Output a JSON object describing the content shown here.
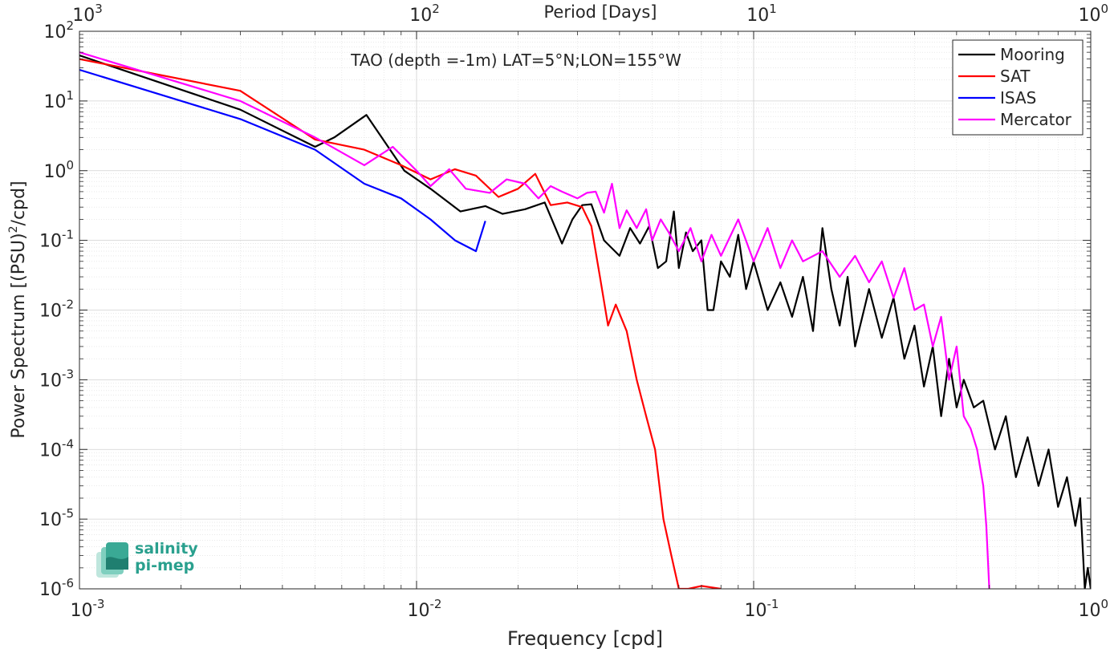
{
  "chart_data": {
    "type": "line",
    "title": "TAO (depth =-1m) LAT=5°N;LON=155°W",
    "xlabel": "Frequency [cpd]",
    "ylabel_main": "Power Spectrum [(PSU)",
    "ylabel_sup": "2",
    "ylabel_tail": "/cpd]",
    "top_xlabel": "Period [Days]",
    "xscale": "log",
    "yscale": "log",
    "xlim": [
      0.001,
      1
    ],
    "ylim": [
      1e-06,
      100
    ],
    "grid": true,
    "legend_position": "top-right",
    "x_ticks": [
      {
        "value": 0.001,
        "base": "10",
        "exp": "-3"
      },
      {
        "value": 0.01,
        "base": "10",
        "exp": "-2"
      },
      {
        "value": 0.1,
        "base": "10",
        "exp": "-1"
      },
      {
        "value": 1,
        "base": "10",
        "exp": "0"
      }
    ],
    "y_ticks": [
      {
        "value": 1e-06,
        "base": "10",
        "exp": "-6"
      },
      {
        "value": 1e-05,
        "base": "10",
        "exp": "-5"
      },
      {
        "value": 0.0001,
        "base": "10",
        "exp": "-4"
      },
      {
        "value": 0.001,
        "base": "10",
        "exp": "-3"
      },
      {
        "value": 0.01,
        "base": "10",
        "exp": "-2"
      },
      {
        "value": 0.1,
        "base": "10",
        "exp": "-1"
      },
      {
        "value": 1,
        "base": "10",
        "exp": "0"
      },
      {
        "value": 10,
        "base": "10",
        "exp": "1"
      },
      {
        "value": 100,
        "base": "10",
        "exp": "2"
      }
    ],
    "top_ticks": [
      {
        "value": 0.001,
        "base": "10",
        "exp": "3"
      },
      {
        "value": 0.01,
        "base": "10",
        "exp": "2"
      },
      {
        "value": 0.1,
        "base": "10",
        "exp": "1"
      },
      {
        "value": 1,
        "base": "10",
        "exp": "0"
      }
    ],
    "series": [
      {
        "name": "Mooring",
        "color": "#000000",
        "points": [
          [
            0.001,
            45
          ],
          [
            0.003,
            7.5
          ],
          [
            0.005,
            2.2
          ],
          [
            0.0057,
            3
          ],
          [
            0.0071,
            6.3
          ],
          [
            0.0092,
            1
          ],
          [
            0.011,
            0.55
          ],
          [
            0.0135,
            0.26
          ],
          [
            0.016,
            0.31
          ],
          [
            0.018,
            0.24
          ],
          [
            0.021,
            0.28
          ],
          [
            0.024,
            0.35
          ],
          [
            0.027,
            0.09
          ],
          [
            0.029,
            0.2
          ],
          [
            0.031,
            0.32
          ],
          [
            0.033,
            0.33
          ],
          [
            0.036,
            0.1
          ],
          [
            0.04,
            0.06
          ],
          [
            0.043,
            0.15
          ],
          [
            0.046,
            0.09
          ],
          [
            0.049,
            0.16
          ],
          [
            0.052,
            0.04
          ],
          [
            0.055,
            0.05
          ],
          [
            0.058,
            0.26
          ],
          [
            0.06,
            0.04
          ],
          [
            0.063,
            0.13
          ],
          [
            0.066,
            0.07
          ],
          [
            0.07,
            0.1
          ],
          [
            0.073,
            0.01
          ],
          [
            0.076,
            0.01
          ],
          [
            0.08,
            0.05
          ],
          [
            0.085,
            0.03
          ],
          [
            0.09,
            0.12
          ],
          [
            0.095,
            0.02
          ],
          [
            0.1,
            0.05
          ],
          [
            0.11,
            0.01
          ],
          [
            0.12,
            0.025
          ],
          [
            0.13,
            0.008
          ],
          [
            0.14,
            0.03
          ],
          [
            0.15,
            0.005
          ],
          [
            0.16,
            0.15
          ],
          [
            0.17,
            0.02
          ],
          [
            0.18,
            0.006
          ],
          [
            0.19,
            0.03
          ],
          [
            0.2,
            0.003
          ],
          [
            0.22,
            0.02
          ],
          [
            0.24,
            0.004
          ],
          [
            0.26,
            0.015
          ],
          [
            0.28,
            0.002
          ],
          [
            0.3,
            0.006
          ],
          [
            0.32,
            0.0008
          ],
          [
            0.34,
            0.003
          ],
          [
            0.36,
            0.0003
          ],
          [
            0.38,
            0.002
          ],
          [
            0.4,
            0.0004
          ],
          [
            0.42,
            0.001
          ],
          [
            0.45,
            0.0004
          ],
          [
            0.48,
            0.0005
          ],
          [
            0.52,
            0.0001
          ],
          [
            0.56,
            0.0003
          ],
          [
            0.6,
            4e-05
          ],
          [
            0.65,
            0.00015
          ],
          [
            0.7,
            3e-05
          ],
          [
            0.75,
            0.0001
          ],
          [
            0.8,
            1.5e-05
          ],
          [
            0.85,
            4e-05
          ],
          [
            0.9,
            8e-06
          ],
          [
            0.93,
            2e-05
          ],
          [
            0.96,
            1e-06
          ],
          [
            0.98,
            2e-06
          ],
          [
            1,
            1e-06
          ]
        ]
      },
      {
        "name": "SAT",
        "color": "#ff0000",
        "points": [
          [
            0.001,
            40
          ],
          [
            0.003,
            14
          ],
          [
            0.005,
            2.8
          ],
          [
            0.007,
            2
          ],
          [
            0.009,
            1.2
          ],
          [
            0.011,
            0.75
          ],
          [
            0.013,
            1.05
          ],
          [
            0.015,
            0.85
          ],
          [
            0.0175,
            0.42
          ],
          [
            0.02,
            0.55
          ],
          [
            0.0225,
            0.9
          ],
          [
            0.025,
            0.32
          ],
          [
            0.028,
            0.35
          ],
          [
            0.031,
            0.3
          ],
          [
            0.033,
            0.16
          ],
          [
            0.035,
            0.03
          ],
          [
            0.037,
            0.006
          ],
          [
            0.039,
            0.012
          ],
          [
            0.042,
            0.005
          ],
          [
            0.045,
            0.001
          ],
          [
            0.048,
            0.0003
          ],
          [
            0.051,
            0.0001
          ],
          [
            0.054,
            1e-05
          ],
          [
            0.057,
            3e-06
          ],
          [
            0.06,
            1e-06
          ],
          [
            0.064,
            1e-06
          ],
          [
            0.07,
            1.1e-06
          ],
          [
            0.08,
            1e-06
          ]
        ]
      },
      {
        "name": "ISAS",
        "color": "#0000ff",
        "points": [
          [
            0.001,
            28
          ],
          [
            0.003,
            5.5
          ],
          [
            0.005,
            2
          ],
          [
            0.007,
            0.65
          ],
          [
            0.009,
            0.4
          ],
          [
            0.011,
            0.2
          ],
          [
            0.013,
            0.1
          ],
          [
            0.015,
            0.07
          ],
          [
            0.016,
            0.19
          ]
        ]
      },
      {
        "name": "Mercator",
        "color": "#ff00ff",
        "points": [
          [
            0.001,
            50
          ],
          [
            0.003,
            10
          ],
          [
            0.005,
            3
          ],
          [
            0.007,
            1.2
          ],
          [
            0.0085,
            2.2
          ],
          [
            0.01,
            1
          ],
          [
            0.011,
            0.6
          ],
          [
            0.0125,
            1.05
          ],
          [
            0.014,
            0.55
          ],
          [
            0.0165,
            0.48
          ],
          [
            0.0185,
            0.75
          ],
          [
            0.021,
            0.65
          ],
          [
            0.023,
            0.4
          ],
          [
            0.025,
            0.6
          ],
          [
            0.027,
            0.5
          ],
          [
            0.03,
            0.4
          ],
          [
            0.032,
            0.48
          ],
          [
            0.034,
            0.5
          ],
          [
            0.036,
            0.25
          ],
          [
            0.038,
            0.65
          ],
          [
            0.04,
            0.15
          ],
          [
            0.042,
            0.27
          ],
          [
            0.045,
            0.15
          ],
          [
            0.048,
            0.28
          ],
          [
            0.05,
            0.1
          ],
          [
            0.053,
            0.2
          ],
          [
            0.056,
            0.13
          ],
          [
            0.06,
            0.07
          ],
          [
            0.065,
            0.15
          ],
          [
            0.07,
            0.05
          ],
          [
            0.075,
            0.12
          ],
          [
            0.08,
            0.06
          ],
          [
            0.09,
            0.2
          ],
          [
            0.1,
            0.05
          ],
          [
            0.11,
            0.15
          ],
          [
            0.12,
            0.04
          ],
          [
            0.13,
            0.1
          ],
          [
            0.14,
            0.05
          ],
          [
            0.16,
            0.07
          ],
          [
            0.18,
            0.03
          ],
          [
            0.2,
            0.06
          ],
          [
            0.22,
            0.025
          ],
          [
            0.24,
            0.05
          ],
          [
            0.26,
            0.015
          ],
          [
            0.28,
            0.04
          ],
          [
            0.3,
            0.01
          ],
          [
            0.32,
            0.012
          ],
          [
            0.34,
            0.003
          ],
          [
            0.36,
            0.008
          ],
          [
            0.38,
            0.001
          ],
          [
            0.4,
            0.003
          ],
          [
            0.42,
            0.0003
          ],
          [
            0.44,
            0.0002
          ],
          [
            0.46,
            0.0001
          ],
          [
            0.48,
            3e-05
          ],
          [
            0.49,
            8e-06
          ],
          [
            0.5,
            1e-06
          ]
        ]
      }
    ]
  },
  "logo": {
    "line1": "salinity",
    "line2": "pi-mep"
  }
}
